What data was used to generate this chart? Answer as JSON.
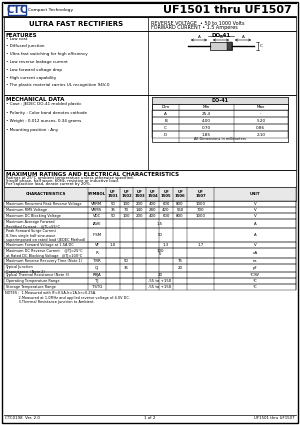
{
  "title": "UF1501 thru UF1507",
  "subtitle": "ULTRA FAST RECTIFIERS",
  "reverse_voltage": "REVERSE VOLTAGE  • 50 to 1000 Volts",
  "forward_current": "FORWARD CURRENT • 1.5 Amperes",
  "features_title": "FEATURES",
  "features": [
    "• Low cost",
    "• Diffused junction",
    "• Ultra fast switching for high efficiency",
    "• Low reverse leakage current",
    "• Low forward voltage drop",
    "• High current capability",
    "• The plastic material carries UL recognition 94V-0"
  ],
  "mech_title": "MECHANICAL DATA",
  "mech_items": [
    "• Case : JEDEC DO-41 molded plastic",
    "• Polarity : Color band denotes cathode",
    "• Weight : 0.012 ounces, 0.34 grams",
    "• Mounting position : Any"
  ],
  "do41_rows": [
    [
      "A",
      "25.4",
      "-"
    ],
    [
      "B",
      "4.00",
      "5.20"
    ],
    [
      "C",
      "0.70",
      "0.86"
    ],
    [
      "D",
      "1.85",
      "2.10"
    ]
  ],
  "max_ratings_title": "MAXIMUM RATINGS AND ELECTRICAL CHARACTERISTICS",
  "max_ratings_subtitle1": "Ratings at 25°C ambient temperature unless otherwise specified.",
  "max_ratings_subtitle2": "Single phase, half wave, 60Hz, resistive or inductive load.",
  "max_ratings_subtitle3": "For capacitive load, derate current by 20%.",
  "table_col_headers": [
    "CHARACTERISTICS",
    "SYMBOL",
    "UF\n1501",
    "UF\n1502",
    "UF\n1503",
    "UF\n1504",
    "UF\n1505",
    "UF\n1506",
    "UF\n1507",
    "UNIT"
  ],
  "table_rows": [
    [
      "Maximum Recurrent Peak Reverse Voltage",
      "VRRM",
      "50",
      "100",
      "200",
      "400",
      "600",
      "800",
      "1000",
      "V"
    ],
    [
      "Maximum RMS Voltage",
      "VRMS",
      "35",
      "70",
      "140",
      "280",
      "420",
      "560",
      "700",
      "V"
    ],
    [
      "Maximum DC Blocking Voltage",
      "VDC",
      "50",
      "100",
      "200",
      "400",
      "600",
      "800",
      "1000",
      "V"
    ],
    [
      "Maximum Average Forward\nRectified Current    @TL=55°C",
      "IAVE",
      "",
      "",
      "",
      "1.5",
      "",
      "",
      "",
      "A"
    ],
    [
      "Peak Forward Surge Current\n8.3ms single half sine-wave\nsuperimposed on rated load (JEDEC Method)",
      "IFSM",
      "",
      "",
      "",
      "50",
      "",
      "",
      "",
      "A"
    ],
    [
      "Maximum Forward Voltage at 1.5A DC",
      "VF",
      "",
      "1.0",
      "",
      "",
      "1.3",
      "",
      "1.7",
      "V"
    ],
    [
      "Maximum DC Reverse Current    @TJ=25°C\nat Rated DC Blocking Voltage   @TJ=100°C",
      "IR",
      "",
      "",
      "",
      "5\n100",
      "",
      "",
      "",
      "uA"
    ],
    [
      "Maximum Reverse Recovery Time (Note 1)",
      "TRR",
      "",
      "50",
      "",
      "",
      "75",
      "",
      "",
      "ns"
    ],
    [
      "Typical Junction\nCapacitance  (Note 2)",
      "CJ",
      "",
      "35",
      "",
      "",
      "20",
      "",
      "",
      "pF"
    ],
    [
      "Typical Thermal Resistance (Note 3)",
      "RθJA",
      "",
      "",
      "",
      "20",
      "",
      "",
      "",
      "°C/W"
    ],
    [
      "Operating Temperature Range",
      "TJ",
      "",
      "",
      "",
      "-55 to +150",
      "",
      "",
      "",
      "°C"
    ],
    [
      "Storage Temperature Range",
      "TSTG",
      "",
      "",
      "",
      "-55 to +150",
      "",
      "",
      "",
      "°C"
    ]
  ],
  "notes": [
    "NOTES :  1.Measured with IF=0.5A,Ir=1A,Irr=0.25A.",
    "            2.Measured at 1.0MHz and applied reverse voltage of 4.0V DC.",
    "            3.Thermal Resistance Junction to Ambient."
  ],
  "footer_left": "CTC0198  Ver. 2.0",
  "footer_center": "1 of 2",
  "footer_right": "UF1501 thru UF1507",
  "bg_color": "#ffffff",
  "logo_color": "#1a3a8c"
}
